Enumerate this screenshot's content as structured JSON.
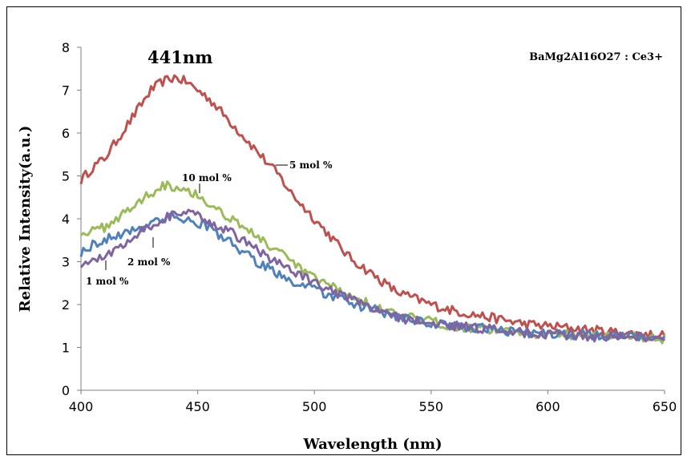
{
  "chart_data": {
    "type": "line",
    "xlabel": "Wavelength (nm)",
    "ylabel": "Relative Intensity(a.u.)",
    "xlim": [
      400,
      650
    ],
    "ylim": [
      0,
      8
    ],
    "xticks": [
      400,
      450,
      500,
      550,
      600,
      650
    ],
    "yticks": [
      0,
      1,
      2,
      3,
      4,
      5,
      6,
      7,
      8
    ],
    "grid": false,
    "legend": "none",
    "formula": "BaMg2Al16O27 : Ce3+",
    "peak_label": "441nm",
    "series": [
      {
        "name": "5 mol %",
        "color": "#c0504d",
        "x": [
          400,
          405,
          410,
          415,
          420,
          425,
          430,
          435,
          440,
          445,
          450,
          455,
          460,
          465,
          470,
          475,
          480,
          485,
          490,
          495,
          500,
          505,
          510,
          515,
          520,
          525,
          530,
          535,
          540,
          545,
          550,
          560,
          570,
          580,
          590,
          600,
          610,
          620,
          630,
          640,
          650
        ],
        "y": [
          4.9,
          5.2,
          5.4,
          5.8,
          6.2,
          6.6,
          7.0,
          7.2,
          7.3,
          7.2,
          7.0,
          6.8,
          6.5,
          6.2,
          5.9,
          5.6,
          5.3,
          5.0,
          4.6,
          4.3,
          4.0,
          3.7,
          3.4,
          3.1,
          2.9,
          2.7,
          2.5,
          2.3,
          2.2,
          2.1,
          2.0,
          1.85,
          1.75,
          1.65,
          1.55,
          1.5,
          1.45,
          1.4,
          1.35,
          1.3,
          1.3
        ]
      },
      {
        "name": "10 mol %",
        "color": "#9bbb59",
        "x": [
          400,
          405,
          410,
          415,
          420,
          425,
          430,
          435,
          440,
          445,
          450,
          455,
          460,
          465,
          470,
          475,
          480,
          485,
          490,
          495,
          500,
          510,
          520,
          530,
          540,
          550,
          560,
          570,
          580,
          590,
          600,
          610,
          620,
          630,
          640,
          650
        ],
        "y": [
          3.7,
          3.7,
          3.8,
          4.0,
          4.2,
          4.4,
          4.6,
          4.8,
          4.75,
          4.7,
          4.55,
          4.35,
          4.15,
          4.0,
          3.8,
          3.6,
          3.4,
          3.2,
          3.0,
          2.8,
          2.6,
          2.35,
          2.1,
          1.85,
          1.7,
          1.6,
          1.5,
          1.45,
          1.4,
          1.35,
          1.3,
          1.3,
          1.3,
          1.25,
          1.25,
          1.2
        ]
      },
      {
        "name": "2 mol %",
        "color": "#4f81bd",
        "x": [
          400,
          405,
          410,
          415,
          420,
          425,
          430,
          435,
          440,
          445,
          450,
          455,
          460,
          465,
          470,
          475,
          480,
          485,
          490,
          495,
          500,
          510,
          520,
          530,
          540,
          550,
          560,
          570,
          580,
          590,
          600,
          610,
          620,
          630,
          640,
          650
        ],
        "y": [
          3.2,
          3.4,
          3.5,
          3.6,
          3.7,
          3.8,
          3.9,
          4.0,
          4.05,
          4.0,
          3.9,
          3.8,
          3.6,
          3.4,
          3.2,
          3.0,
          2.85,
          2.7,
          2.55,
          2.45,
          2.35,
          2.15,
          1.95,
          1.8,
          1.65,
          1.55,
          1.5,
          1.45,
          1.4,
          1.35,
          1.3,
          1.3,
          1.3,
          1.25,
          1.25,
          1.25
        ]
      },
      {
        "name": "1 mol %",
        "color": "#8064a2",
        "x": [
          400,
          405,
          410,
          415,
          420,
          425,
          430,
          435,
          440,
          445,
          450,
          455,
          460,
          465,
          470,
          475,
          480,
          485,
          490,
          495,
          500,
          510,
          520,
          530,
          540,
          550,
          560,
          570,
          580,
          590,
          600,
          610,
          620,
          630,
          640,
          650
        ],
        "y": [
          2.95,
          3.0,
          3.1,
          3.3,
          3.5,
          3.7,
          3.85,
          4.0,
          4.1,
          4.15,
          4.05,
          3.95,
          3.8,
          3.65,
          3.5,
          3.3,
          3.1,
          2.95,
          2.8,
          2.65,
          2.5,
          2.25,
          2.0,
          1.8,
          1.65,
          1.55,
          1.5,
          1.45,
          1.4,
          1.35,
          1.3,
          1.3,
          1.25,
          1.25,
          1.25,
          1.25
        ]
      }
    ],
    "annotations": [
      {
        "text": "5 mol %",
        "series": "5 mol %"
      },
      {
        "text": "10 mol %",
        "series": "10 mol %"
      },
      {
        "text": "2 mol %",
        "series": "2 mol %"
      },
      {
        "text": "1 mol %",
        "series": "1 mol %"
      }
    ]
  }
}
